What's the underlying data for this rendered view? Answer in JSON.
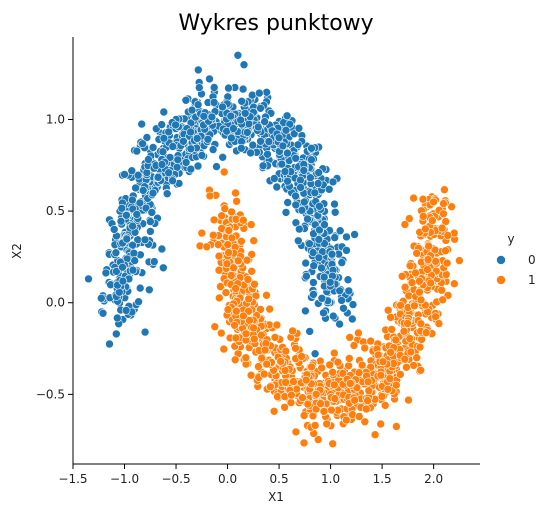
{
  "chart_data": {
    "type": "scatter",
    "title": "Wykres punktowy",
    "xlabel": "X1",
    "ylabel": "X2",
    "xlim": [
      -1.5,
      2.45
    ],
    "ylim": [
      -0.88,
      1.45
    ],
    "xticks": [
      -1.5,
      -1.0,
      -0.5,
      0.0,
      0.5,
      1.0,
      1.5,
      2.0
    ],
    "xtick_labels": [
      "−1.5",
      "−1.0",
      "−0.5",
      "0.0",
      "0.5",
      "1.0",
      "1.5",
      "2.0"
    ],
    "yticks": [
      -0.5,
      0.0,
      0.5,
      1.0
    ],
    "ytick_labels": [
      "−0.5",
      "0.0",
      "0.5",
      "1.0"
    ],
    "grid": false,
    "legend": {
      "title": "y",
      "placement": "right",
      "entries": [
        {
          "label": "0",
          "color": "#1f77b4"
        },
        {
          "label": "1",
          "color": "#ff7f0e"
        }
      ]
    },
    "series": [
      {
        "name": "0",
        "color": "#1f77b4",
        "shape": "upper-moon",
        "center": [
          0.0,
          0.0
        ],
        "radius": 1.0,
        "noise": 0.1,
        "count": 1000,
        "points_sample": [
          [
            -1.35,
            0.13
          ],
          [
            -1.1,
            0.4
          ],
          [
            -1.0,
            0.7
          ],
          [
            -0.8,
            0.85
          ],
          [
            -0.5,
            1.0
          ],
          [
            0.0,
            1.1
          ],
          [
            0.1,
            1.35
          ],
          [
            0.5,
            0.9
          ],
          [
            0.8,
            0.5
          ],
          [
            1.0,
            0.1
          ],
          [
            0.95,
            -0.08
          ],
          [
            -1.08,
            -0.17
          ],
          [
            -0.8,
            -0.16
          ]
        ]
      },
      {
        "name": "1",
        "color": "#ff7f0e",
        "shape": "lower-moon",
        "center": [
          1.0,
          0.5
        ],
        "radius": 1.0,
        "noise": 0.1,
        "count": 1000,
        "points_sample": [
          [
            -0.25,
            0.38
          ],
          [
            0.0,
            0.45
          ],
          [
            0.2,
            -0.1
          ],
          [
            0.5,
            -0.35
          ],
          [
            1.0,
            -0.5
          ],
          [
            1.02,
            -0.77
          ],
          [
            1.5,
            -0.3
          ],
          [
            1.8,
            0.2
          ],
          [
            2.0,
            0.55
          ],
          [
            2.2,
            0.38
          ],
          [
            2.25,
            0.23
          ]
        ]
      }
    ]
  }
}
